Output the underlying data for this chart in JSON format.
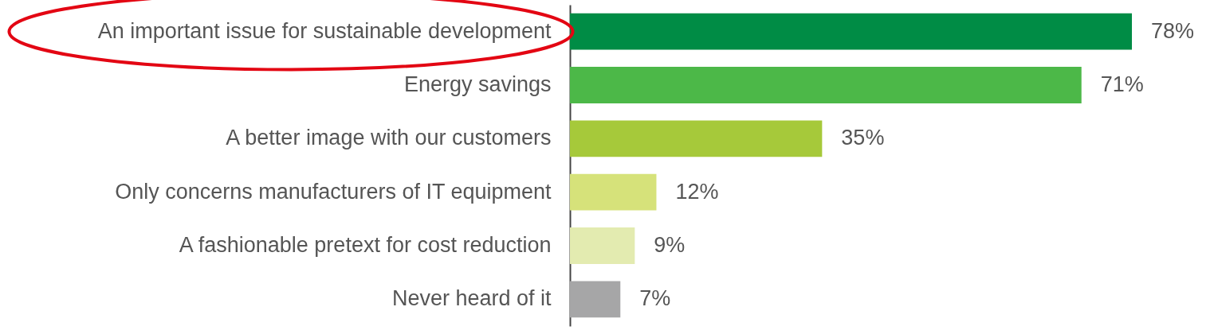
{
  "chart_data": {
    "type": "bar",
    "orientation": "horizontal",
    "categories": [
      "An important issue for sustainable development",
      "Energy savings",
      "A better image with our customers",
      "Only concerns manufacturers of IT equipment",
      "A fashionable pretext for cost reduction",
      "Never heard of it"
    ],
    "values": [
      78,
      71,
      35,
      12,
      9,
      7
    ],
    "value_labels": [
      "78%",
      "71%",
      "35%",
      "12%",
      "9%",
      "7%"
    ],
    "colors": [
      "#008c45",
      "#4cb848",
      "#a6c93a",
      "#d6e27a",
      "#e3ebb0",
      "#a6a6a7"
    ],
    "grid": false
  }
}
